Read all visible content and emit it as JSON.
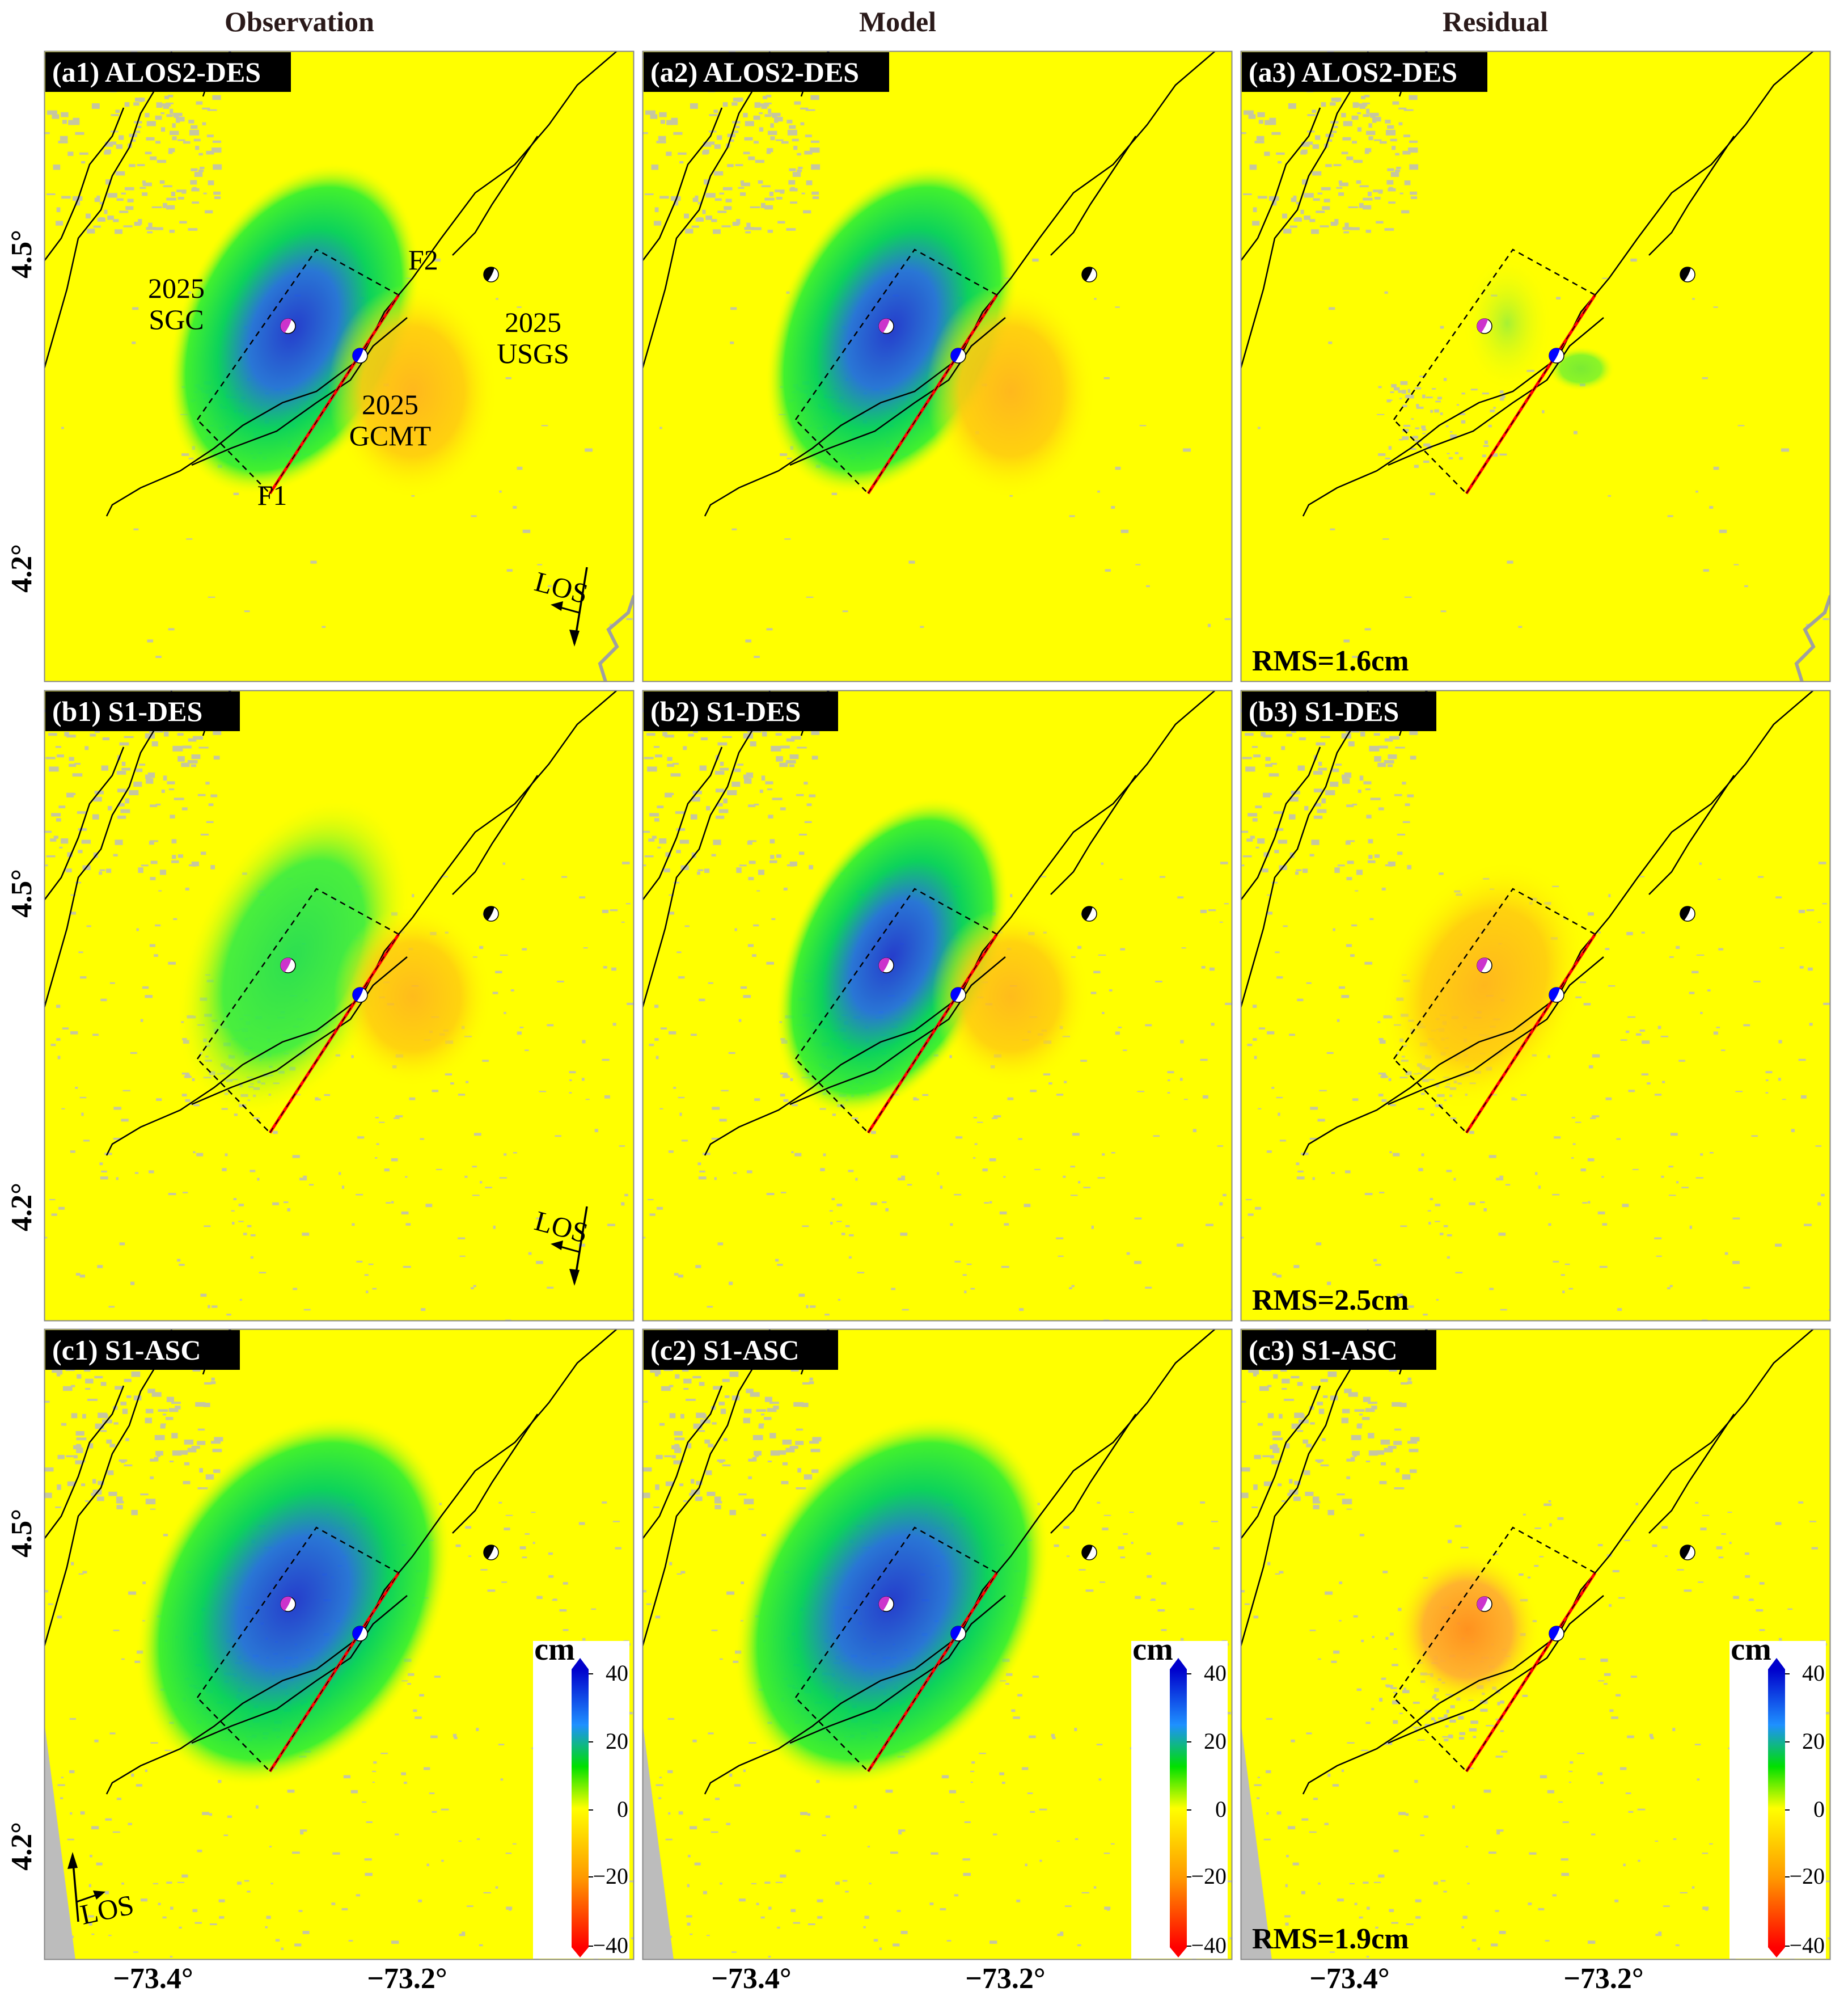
{
  "column_titles": [
    "Observation",
    "Model",
    "Residual"
  ],
  "panels": [
    {
      "id": "a1",
      "label": "(a1) ALOS2-DES",
      "row": 0,
      "col": 0,
      "rms": ""
    },
    {
      "id": "a2",
      "label": "(a2) ALOS2-DES",
      "row": 0,
      "col": 1,
      "rms": ""
    },
    {
      "id": "a3",
      "label": "(a3) ALOS2-DES",
      "row": 0,
      "col": 2,
      "rms": "RMS=1.6cm"
    },
    {
      "id": "b1",
      "label": "(b1) S1-DES",
      "row": 1,
      "col": 0,
      "rms": ""
    },
    {
      "id": "b2",
      "label": "(b2) S1-DES",
      "row": 1,
      "col": 1,
      "rms": ""
    },
    {
      "id": "b3",
      "label": "(b3) S1-DES",
      "row": 1,
      "col": 2,
      "rms": "RMS=2.5cm"
    },
    {
      "id": "c1",
      "label": "(c1) S1-ASC",
      "row": 2,
      "col": 0,
      "rms": ""
    },
    {
      "id": "c2",
      "label": "(c2) S1-ASC",
      "row": 2,
      "col": 1,
      "rms": ""
    },
    {
      "id": "c3",
      "label": "(c3) S1-ASC",
      "row": 2,
      "col": 2,
      "rms": "RMS=1.9cm"
    }
  ],
  "axes": {
    "x_ticks": [
      "−73.4°",
      "−73.2°"
    ],
    "y_ticks": [
      "4.5°",
      "4.2°"
    ]
  },
  "annotations": {
    "sgc_year": "2025",
    "sgc_name": "SGC",
    "usgs_year": "2025",
    "usgs_name": "USGS",
    "gcmt_year": "2025",
    "gcmt_name": "GCMT",
    "fault_f1": "F1",
    "fault_f2": "F2",
    "los": "LOS"
  },
  "colorbar": {
    "unit": "cm",
    "ticks": [
      "40",
      "20",
      "0",
      "−20",
      "−40"
    ],
    "colors_top_to_bottom": [
      "#0000cc",
      "#1e90ff",
      "#00e000",
      "#ffff00",
      "#ff9900",
      "#ff0000"
    ]
  },
  "colors": {
    "background": "#ffff00",
    "fault_trace": "#000000",
    "model_fault": "#ff0000",
    "sgc_beachball": "#cc33cc",
    "gcmt_beachball": "#0000ff",
    "usgs_beachball": "#000000",
    "low_coherence": "#bdbdbd"
  }
}
